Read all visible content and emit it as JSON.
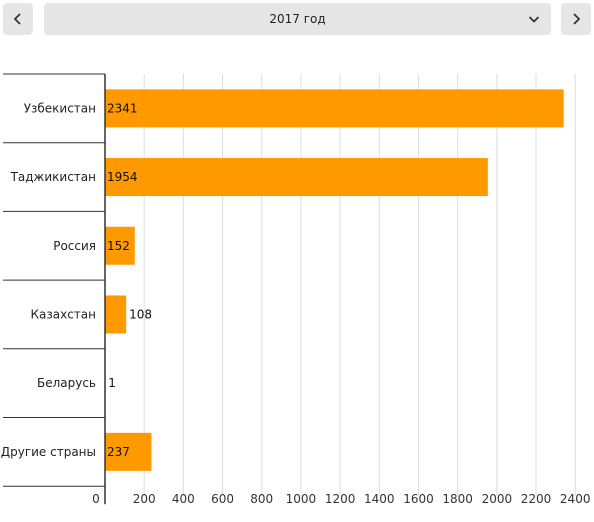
{
  "nav": {
    "prev_icon": "chevron-left-icon",
    "next_icon": "chevron-right-icon",
    "selected_year": "2017 год",
    "dropdown_icon": "chevron-down-icon"
  },
  "chart_data": {
    "type": "bar",
    "orientation": "horizontal",
    "categories": [
      "Узбекистан",
      "Таджикистан",
      "Россия",
      "Казахстан",
      "Беларусь",
      "Другие страны"
    ],
    "values": [
      2341,
      1954,
      152,
      108,
      1,
      237
    ],
    "xlim": [
      0,
      2450
    ],
    "xticks": [
      0,
      200,
      400,
      600,
      800,
      1000,
      1200,
      1400,
      1600,
      1800,
      2000,
      2200,
      2400
    ],
    "grid": true,
    "bar_color": "#ff9900",
    "grid_color": "#dddddd",
    "axis_color": "#333333"
  }
}
